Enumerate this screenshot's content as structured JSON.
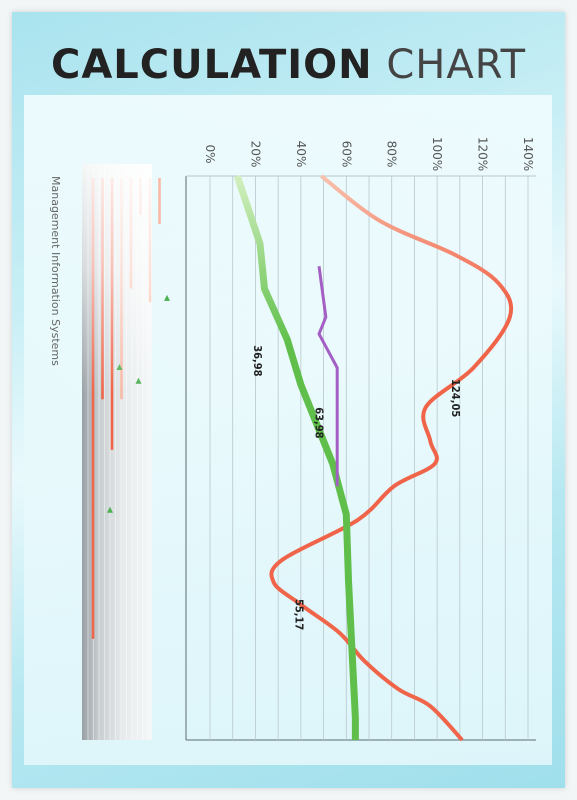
{
  "title": {
    "bold": "CALCULATION",
    "light": " CHART"
  },
  "side_label": "Management Information Systems",
  "colors": {
    "orange": "#f06449",
    "orange_light": "#f8b9a5",
    "green": "#5fbf4a",
    "green_light": "#c7eab3",
    "purple": "#a35fc4",
    "grid": "#b9c7cc"
  },
  "chart_data": {
    "type": "line",
    "orientation": "rotated-90",
    "ticks": [
      "0%",
      "20%",
      "40%",
      "60%",
      "80%",
      "100%",
      "120%",
      "140%"
    ],
    "value_range": [
      0,
      140
    ],
    "grid": true,
    "series": [
      {
        "key": "orange",
        "points": [
          [
            0,
            49
          ],
          [
            8,
            75
          ],
          [
            14,
            108
          ],
          [
            19,
            127
          ],
          [
            25,
            132
          ],
          [
            34,
            116
          ],
          [
            41,
            95
          ],
          [
            47,
            97
          ],
          [
            51,
            99
          ],
          [
            55,
            81
          ],
          [
            61,
            65
          ],
          [
            68,
            32
          ],
          [
            72,
            28
          ],
          [
            76,
            40
          ],
          [
            81,
            57
          ],
          [
            86,
            68
          ],
          [
            91,
            83
          ],
          [
            94,
            97
          ],
          [
            100,
            111
          ]
        ],
        "labels": [
          {
            "t": 36,
            "v": 124.05,
            "text": "124,05"
          }
        ]
      },
      {
        "key": "green",
        "points": [
          [
            0,
            12
          ],
          [
            12,
            22
          ],
          [
            20,
            24
          ],
          [
            29,
            34
          ],
          [
            37,
            40
          ],
          [
            51,
            54
          ],
          [
            60,
            60
          ],
          [
            72,
            61
          ],
          [
            88,
            63
          ],
          [
            96,
            64
          ],
          [
            100,
            64
          ]
        ],
        "labels": [
          {
            "t": 30,
            "v": 36.98,
            "text": "36,98"
          },
          {
            "t": 75,
            "v": 55.17,
            "text": "55,17"
          }
        ]
      },
      {
        "key": "purple",
        "points": [
          [
            16,
            48
          ],
          [
            25,
            51
          ],
          [
            28,
            48
          ],
          [
            34,
            56
          ],
          [
            55,
            56
          ]
        ],
        "labels": [
          {
            "t": 41,
            "v": 63.98,
            "text": "63,98"
          }
        ]
      }
    ]
  },
  "mini_bars": [
    {
      "extent": 100,
      "color": "orange"
    },
    {
      "extent": 48,
      "color": "orange"
    },
    {
      "extent": 59,
      "color": "orange"
    },
    {
      "extent": 48,
      "color": "orange_light"
    },
    {
      "extent": 24,
      "color": "orange_light"
    },
    {
      "extent": 8,
      "color": "orange_light"
    },
    {
      "extent": 27,
      "color": "orange_light"
    },
    {
      "extent": 10,
      "color": "orange_light"
    }
  ],
  "mini_markers": [
    {
      "bar": 1,
      "pos": 41
    },
    {
      "bar": 3,
      "pos": 44
    },
    {
      "bar": 6,
      "pos": 26
    },
    {
      "bar": 0,
      "pos": 72
    }
  ]
}
